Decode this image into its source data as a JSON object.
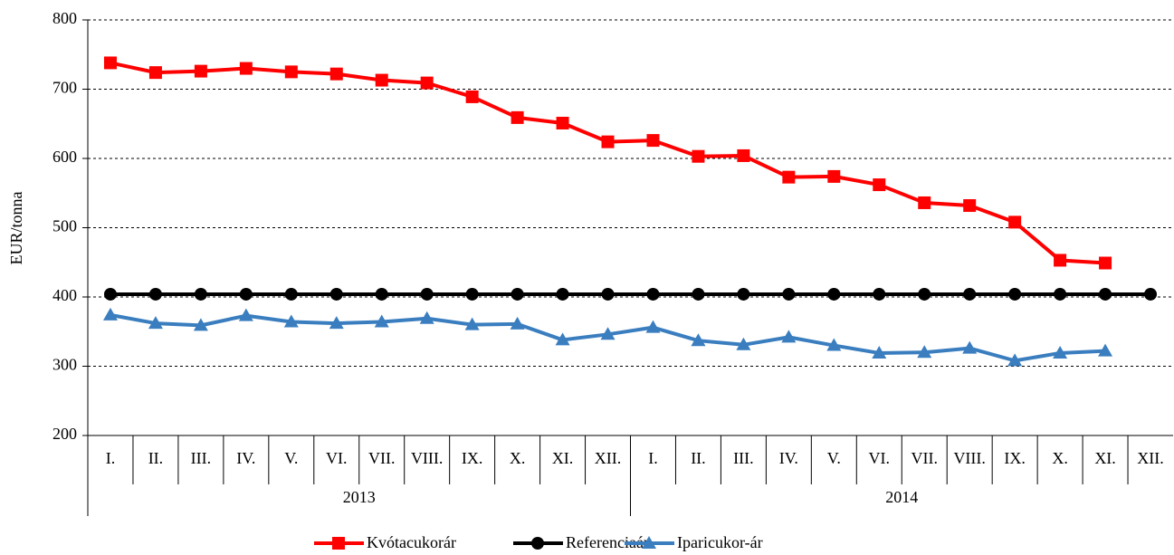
{
  "chart_data": {
    "type": "line",
    "y_label": "EUR/tonna",
    "categories": [
      "I.",
      "II.",
      "III.",
      "IV.",
      "V.",
      "VI.",
      "VII.",
      "VIII.",
      "IX.",
      "X.",
      "XI.",
      "XII.",
      "I.",
      "II.",
      "III.",
      "IV.",
      "V.",
      "VI.",
      "VII.",
      "VIII.",
      "IX.",
      "X.",
      "XI.",
      "XII."
    ],
    "groups": [
      "2013",
      "2014"
    ],
    "series": [
      {
        "name": "Kvótacukorár",
        "color": "#ff0000",
        "marker": "square",
        "values": [
          738,
          724,
          726,
          730,
          725,
          722,
          713,
          709,
          689,
          659,
          651,
          624,
          626,
          603,
          604,
          573,
          574,
          562,
          536,
          532,
          508,
          453,
          449,
          null
        ]
      },
      {
        "name": "Referenciaár",
        "color": "#000000",
        "marker": "circle",
        "values": [
          404,
          404,
          404,
          404,
          404,
          404,
          404,
          404,
          404,
          404,
          404,
          404,
          404,
          404,
          404,
          404,
          404,
          404,
          404,
          404,
          404,
          404,
          404,
          404
        ]
      },
      {
        "name": "Iparicukor-ár",
        "color": "#3a7ebf",
        "marker": "triangle",
        "values": [
          374,
          362,
          359,
          373,
          364,
          362,
          364,
          369,
          360,
          361,
          338,
          346,
          356,
          337,
          331,
          342,
          330,
          319,
          320,
          326,
          308,
          319,
          322,
          null
        ]
      }
    ],
    "ylim": [
      200,
      800
    ],
    "yticks": [
      200,
      300,
      400,
      500,
      600,
      700,
      800
    ],
    "grid": true
  }
}
